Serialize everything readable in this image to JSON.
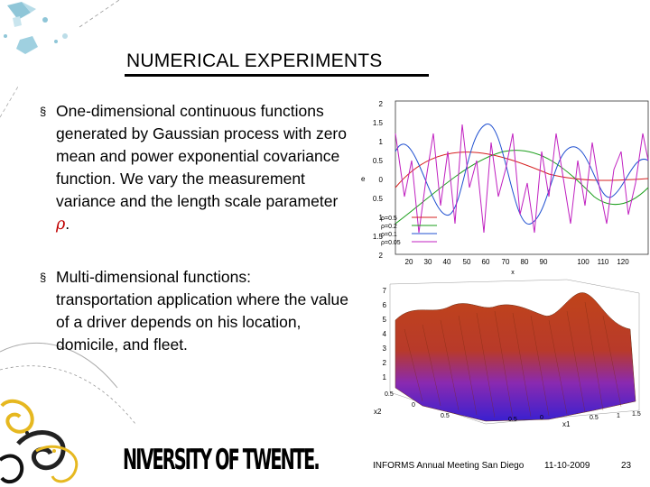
{
  "slide": {
    "title": "NUMERICAL EXPERIMENTS",
    "bullets": [
      {
        "marker": "§",
        "text": "One-dimensional continuous functions generated by Gaussian process with zero mean and power exponential covariance function. We vary the measurement variance and the length scale parameter ",
        "symbol": "ρ",
        "suffix": "."
      },
      {
        "marker": "§",
        "text": "Multi-dimensional functions: transportation application where the value of a driver depends on his location, domicile, and fleet."
      }
    ]
  },
  "footer": {
    "logo_text": "NIVERSITY OF TWENTE.",
    "event": "INFORMS Annual Meeting San Diego",
    "date": "11-10-2009",
    "page": "23"
  },
  "plot1": {
    "type": "line",
    "ylabel": "e",
    "xlabel": "x",
    "x_ticks": [
      "20",
      "30",
      "40",
      "50",
      "60",
      "70",
      "80",
      "90",
      "100",
      "110",
      "120"
    ],
    "y_ticks": [
      "2",
      "1.5",
      "1",
      "0.5",
      "0",
      "0.5",
      "1",
      "1.5",
      "2"
    ],
    "legend": [
      {
        "label": "ρ=0.5",
        "color": "#d62020"
      },
      {
        "label": "ρ=0.2",
        "color": "#1a9e1a"
      },
      {
        "label": "ρ=0.1",
        "color": "#2050d0"
      },
      {
        "label": "ρ=0.05",
        "color": "#c020c0"
      }
    ]
  },
  "plot2": {
    "type": "surface",
    "z_ticks": [
      "7",
      "6",
      "5",
      "4",
      "3",
      "2",
      "1"
    ],
    "x2_ticks": [
      "0.5",
      "0",
      "0.5"
    ],
    "x1_ticks": [
      "0.5",
      "0",
      "0.5",
      "1",
      "1.5"
    ],
    "x2_label": "x2",
    "x1_label": "x1"
  }
}
